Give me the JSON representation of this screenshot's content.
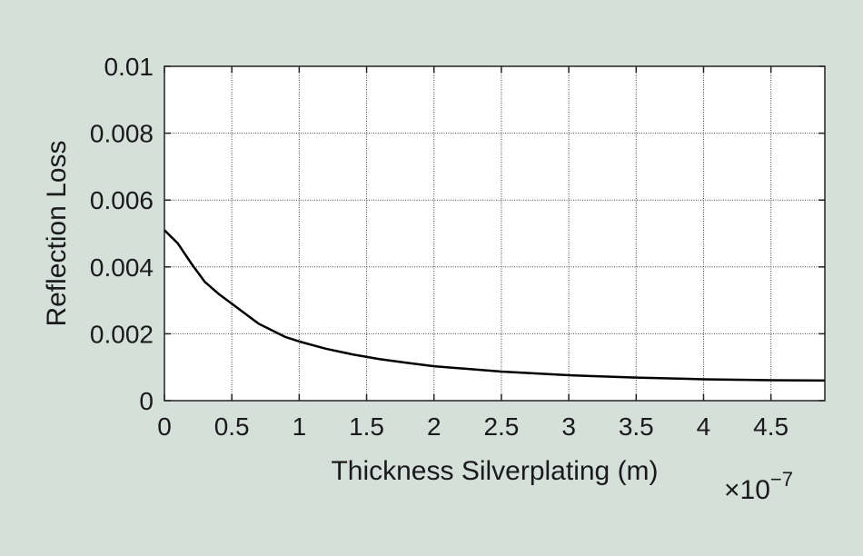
{
  "chart_data": {
    "type": "line",
    "title": "",
    "xlabel": "Thickness Silverplating (m)",
    "ylabel": "Reflection Loss",
    "x_multiplier": "×10",
    "x_multiplier_exp": "−7",
    "xlim": [
      0,
      4.9
    ],
    "ylim": [
      0,
      0.01
    ],
    "grid": true,
    "x_ticks": [
      0,
      0.5,
      1,
      1.5,
      2,
      2.5,
      3,
      3.5,
      4,
      4.5
    ],
    "x_tick_labels": [
      "0",
      "0.5",
      "1",
      "1.5",
      "2",
      "2.5",
      "3",
      "3.5",
      "4",
      "4.5"
    ],
    "y_ticks": [
      0,
      0.002,
      0.004,
      0.006,
      0.008,
      0.01
    ],
    "y_tick_labels": [
      "0",
      "0.002",
      "0.004",
      "0.006",
      "0.008",
      "0.01"
    ],
    "series": [
      {
        "color": "#000000",
        "x": [
          0,
          0.1,
          0.2,
          0.3,
          0.4,
          0.5,
          0.6,
          0.7,
          0.8,
          0.9,
          1.0,
          1.2,
          1.4,
          1.6,
          1.8,
          2.0,
          2.5,
          3.0,
          3.5,
          4.0,
          4.5,
          4.9
        ],
        "y": [
          0.0051,
          0.0047,
          0.0041,
          0.00355,
          0.0032,
          0.0029,
          0.0026,
          0.0023,
          0.0021,
          0.0019,
          0.00177,
          0.00155,
          0.00138,
          0.00124,
          0.00113,
          0.00103,
          0.00087,
          0.00076,
          0.00069,
          0.00064,
          0.00061,
          0.0006
        ]
      }
    ]
  }
}
